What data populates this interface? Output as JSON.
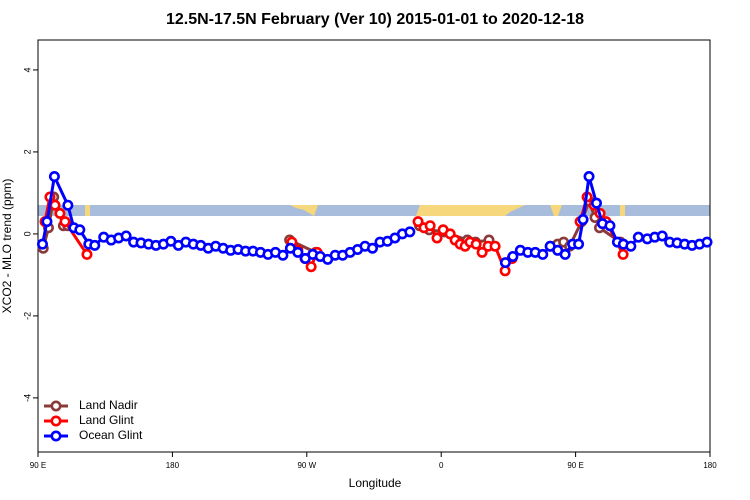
{
  "chart_data": {
    "type": "line",
    "title": "12.5N-17.5N February (Ver 10)   2015-01-01 to 2020-12-18",
    "x_label": "Longitude",
    "y_label": "XCO2 - MLO trend (ppm)",
    "xlim": [
      90,
      540
    ],
    "xticks": [
      {
        "value": 90,
        "label": "90 E"
      },
      {
        "value": 180,
        "label": "180"
      },
      {
        "value": 270,
        "label": "90 W"
      },
      {
        "value": 360,
        "label": "0"
      },
      {
        "value": 450,
        "label": "90 E"
      },
      {
        "value": 540,
        "label": "180"
      }
    ],
    "ylim": [
      -5.32,
      4.73
    ],
    "yticks": [
      -4,
      -2,
      0,
      2,
      4
    ],
    "legend": "bottomleft",
    "series": [
      {
        "name": "Land Nadir",
        "color": "#8b3a3a",
        "x": [
          93.5,
          97,
          100.5,
          107,
          110,
          null,
          258.5,
          276,
          null,
          345.5,
          352,
          362,
          377.5,
          383,
          392,
          null,
          433,
          438,
          442,
          446,
          454,
          459,
          463,
          466,
          480
        ],
        "values": [
          -0.35,
          0.15,
          0.9,
          0.2,
          0.2,
          null,
          -0.15,
          -0.45,
          null,
          0.2,
          0.1,
          0.05,
          -0.15,
          -0.2,
          -0.15,
          null,
          -0.3,
          -0.25,
          -0.2,
          -0.3,
          0.3,
          0.8,
          0.4,
          0.15,
          -0.2
        ]
      },
      {
        "name": "Land Glint",
        "color": "#ff0000",
        "x": [
          94.7,
          98,
          101.4,
          104.7,
          108.1,
          122.8,
          null,
          260,
          264,
          268.8,
          272.9,
          276.9,
          null,
          344.5,
          348.5,
          352.6,
          357.2,
          361.3,
          366,
          369.3,
          372.7,
          376,
          379.3,
          383.4,
          387.4,
          391.4,
          396.1,
          402.8,
          407.5,
          null,
          453,
          457.7,
          462.4,
          466.4,
          470.4,
          481.8
        ],
        "values": [
          0.3,
          0.9,
          0.7,
          0.5,
          0.3,
          -0.5,
          null,
          -0.2,
          -0.4,
          -0.6,
          -0.8,
          -0.45,
          null,
          0.3,
          0.15,
          0.2,
          -0.1,
          0.1,
          0.0,
          -0.15,
          -0.25,
          -0.3,
          -0.2,
          -0.25,
          -0.45,
          -0.3,
          -0.3,
          -0.9,
          -0.6,
          null,
          0.3,
          0.9,
          0.7,
          0.5,
          0.3,
          -0.5
        ]
      },
      {
        "name": "Ocean Glint",
        "color": "#0000ff",
        "x": [
          93,
          96,
          101,
          110,
          114,
          118,
          124,
          128,
          134,
          139,
          144,
          149,
          154,
          159,
          164,
          169,
          174,
          179,
          184,
          189,
          194,
          199,
          204,
          209,
          214,
          219,
          224,
          229,
          234,
          239,
          244,
          249,
          254,
          259,
          264,
          269,
          274,
          279,
          284,
          289,
          294,
          299,
          304,
          309,
          314,
          319,
          324,
          329,
          334,
          339,
          null,
          403,
          408,
          413,
          418,
          423,
          428,
          433,
          438,
          443,
          448,
          452,
          455,
          459,
          464,
          468,
          473,
          478,
          482,
          487,
          492,
          498,
          503,
          508,
          513,
          518,
          523,
          528,
          533,
          538
        ],
        "values": [
          -0.25,
          0.3,
          1.4,
          0.7,
          0.15,
          0.1,
          -0.25,
          -0.28,
          -0.08,
          -0.15,
          -0.1,
          -0.05,
          -0.2,
          -0.22,
          -0.25,
          -0.28,
          -0.25,
          -0.18,
          -0.28,
          -0.2,
          -0.25,
          -0.28,
          -0.35,
          -0.3,
          -0.35,
          -0.4,
          -0.38,
          -0.42,
          -0.42,
          -0.45,
          -0.5,
          -0.45,
          -0.52,
          -0.35,
          -0.45,
          -0.6,
          -0.5,
          -0.55,
          -0.62,
          -0.52,
          -0.52,
          -0.45,
          -0.38,
          -0.3,
          -0.35,
          -0.2,
          -0.18,
          -0.1,
          0.0,
          0.05,
          null,
          -0.7,
          -0.55,
          -0.4,
          -0.45,
          -0.45,
          -0.5,
          -0.3,
          -0.4,
          -0.5,
          -0.25,
          -0.25,
          0.35,
          1.4,
          0.75,
          0.25,
          0.2,
          -0.2,
          -0.25,
          -0.3,
          -0.08,
          -0.12,
          -0.08,
          -0.05,
          -0.2,
          -0.22,
          -0.25,
          -0.28,
          -0.25,
          -0.2
        ]
      }
    ]
  }
}
